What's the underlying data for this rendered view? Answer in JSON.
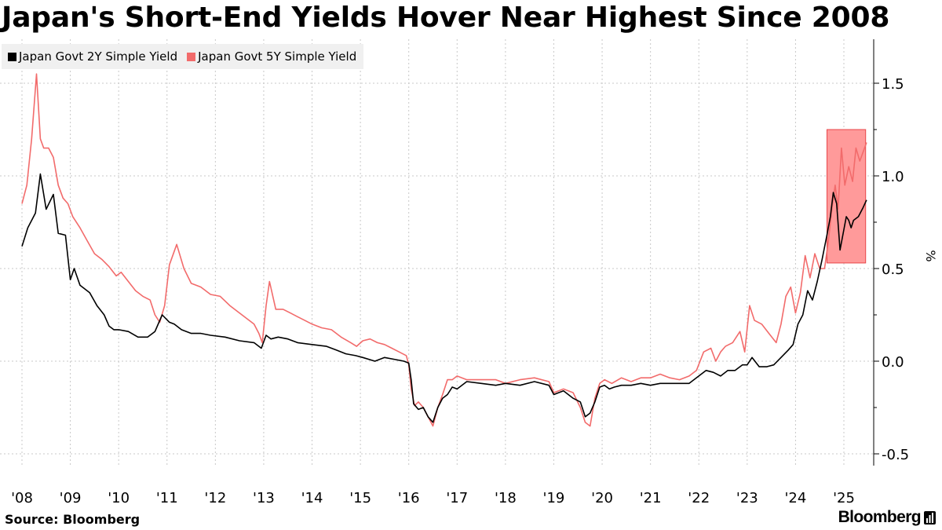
{
  "title": "Japan's Short-End Yields Hover Near Highest Since 2008",
  "source": "Source: Bloomberg",
  "brand": "Bloomberg",
  "colors": {
    "series2y": "#000000",
    "series5y": "#f26b6b",
    "highlight": "#ff9a9a",
    "highlight_border": "#e8464a",
    "grid": "#c8c8c8"
  },
  "chart_data": {
    "type": "line",
    "title": "Japan's Short-End Yields Hover Near Highest Since 2008",
    "xlabel": "",
    "ylabel": "%",
    "xlim": [
      2008.0,
      2025.6
    ],
    "ylim": [
      -0.57,
      1.73
    ],
    "yticks": [
      -0.5,
      0.0,
      0.5,
      1.0,
      1.5
    ],
    "ytick_labels": [
      "-0.5",
      "0.0",
      "0.5",
      "1.0",
      "1.5"
    ],
    "xticks": [
      2008,
      2009,
      2010,
      2011,
      2012,
      2013,
      2014,
      2015,
      2016,
      2017,
      2018,
      2019,
      2020,
      2021,
      2022,
      2023,
      2024,
      2025
    ],
    "xtick_labels": [
      "'08",
      "'09",
      "'10",
      "'11",
      "'12",
      "'13",
      "'14",
      "'15",
      "'16",
      "'17",
      "'18",
      "'19",
      "'20",
      "'21",
      "'22",
      "'23",
      "'24",
      "'25"
    ],
    "grid": true,
    "legend_position": "top-left",
    "highlight_region": {
      "x": [
        2024.65,
        2025.45
      ],
      "y": [
        0.53,
        1.25
      ]
    },
    "series": [
      {
        "name": "Japan Govt 2Y Simple Yield",
        "color": "#000000",
        "x": [
          2008.0,
          2008.12,
          2008.28,
          2008.38,
          2008.5,
          2008.65,
          2008.75,
          2008.9,
          2009.0,
          2009.08,
          2009.2,
          2009.4,
          2009.55,
          2009.7,
          2009.8,
          2009.9,
          2010.0,
          2010.2,
          2010.4,
          2010.6,
          2010.75,
          2010.9,
          2011.05,
          2011.15,
          2011.3,
          2011.5,
          2011.7,
          2011.9,
          2012.2,
          2012.5,
          2012.8,
          2012.95,
          2013.05,
          2013.15,
          2013.3,
          2013.5,
          2013.7,
          2014.0,
          2014.3,
          2014.5,
          2014.7,
          2014.9,
          2015.05,
          2015.3,
          2015.5,
          2015.7,
          2015.9,
          2016.0,
          2016.05,
          2016.1,
          2016.2,
          2016.3,
          2016.4,
          2016.5,
          2016.6,
          2016.7,
          2016.8,
          2016.9,
          2017.0,
          2017.2,
          2017.5,
          2017.8,
          2018.0,
          2018.3,
          2018.6,
          2018.9,
          2019.0,
          2019.2,
          2019.4,
          2019.55,
          2019.65,
          2019.75,
          2019.85,
          2019.95,
          2020.05,
          2020.15,
          2020.25,
          2020.4,
          2020.6,
          2020.8,
          2021.0,
          2021.2,
          2021.4,
          2021.6,
          2021.8,
          2022.0,
          2022.15,
          2022.3,
          2022.45,
          2022.6,
          2022.75,
          2022.9,
          2023.0,
          2023.1,
          2023.25,
          2023.4,
          2023.55,
          2023.7,
          2023.85,
          2023.95,
          2024.05,
          2024.15,
          2024.25,
          2024.35,
          2024.45,
          2024.55,
          2024.65,
          2024.72,
          2024.78,
          2024.85,
          2024.92,
          2025.0,
          2025.05,
          2025.1,
          2025.15,
          2025.2,
          2025.3,
          2025.4,
          2025.47
        ],
        "values": [
          0.62,
          0.72,
          0.8,
          1.01,
          0.82,
          0.9,
          0.69,
          0.68,
          0.44,
          0.5,
          0.41,
          0.37,
          0.3,
          0.25,
          0.19,
          0.17,
          0.17,
          0.16,
          0.13,
          0.13,
          0.16,
          0.25,
          0.21,
          0.2,
          0.17,
          0.15,
          0.15,
          0.14,
          0.13,
          0.11,
          0.1,
          0.07,
          0.14,
          0.12,
          0.13,
          0.12,
          0.1,
          0.09,
          0.08,
          0.06,
          0.04,
          0.03,
          0.02,
          0.0,
          0.02,
          0.01,
          0.0,
          -0.01,
          -0.1,
          -0.23,
          -0.26,
          -0.25,
          -0.3,
          -0.33,
          -0.25,
          -0.2,
          -0.18,
          -0.14,
          -0.15,
          -0.11,
          -0.12,
          -0.13,
          -0.12,
          -0.13,
          -0.11,
          -0.13,
          -0.18,
          -0.16,
          -0.2,
          -0.22,
          -0.3,
          -0.28,
          -0.22,
          -0.14,
          -0.13,
          -0.15,
          -0.14,
          -0.13,
          -0.13,
          -0.12,
          -0.13,
          -0.12,
          -0.12,
          -0.12,
          -0.12,
          -0.08,
          -0.05,
          -0.06,
          -0.08,
          -0.05,
          -0.05,
          -0.02,
          -0.02,
          0.02,
          -0.03,
          -0.03,
          -0.02,
          0.02,
          0.06,
          0.09,
          0.2,
          0.25,
          0.38,
          0.33,
          0.43,
          0.55,
          0.68,
          0.78,
          0.91,
          0.85,
          0.6,
          0.71,
          0.78,
          0.76,
          0.72,
          0.76,
          0.78,
          0.83,
          0.87
        ]
      },
      {
        "name": "Japan Govt 5Y Simple Yield",
        "color": "#f26b6b",
        "x": [
          2008.0,
          2008.1,
          2008.2,
          2008.3,
          2008.38,
          2008.45,
          2008.55,
          2008.65,
          2008.75,
          2008.85,
          2008.95,
          2009.05,
          2009.2,
          2009.35,
          2009.5,
          2009.65,
          2009.8,
          2009.95,
          2010.05,
          2010.2,
          2010.35,
          2010.5,
          2010.65,
          2010.75,
          2010.85,
          2010.95,
          2011.05,
          2011.2,
          2011.35,
          2011.5,
          2011.7,
          2011.9,
          2012.1,
          2012.3,
          2012.55,
          2012.8,
          2012.9,
          2012.97,
          2013.05,
          2013.12,
          2013.25,
          2013.4,
          2013.55,
          2013.7,
          2013.85,
          2014.0,
          2014.2,
          2014.4,
          2014.6,
          2014.8,
          2014.92,
          2015.05,
          2015.2,
          2015.35,
          2015.5,
          2015.65,
          2015.8,
          2015.95,
          2016.0,
          2016.05,
          2016.12,
          2016.2,
          2016.3,
          2016.4,
          2016.5,
          2016.6,
          2016.7,
          2016.8,
          2016.9,
          2017.0,
          2017.2,
          2017.5,
          2017.8,
          2018.0,
          2018.3,
          2018.6,
          2018.9,
          2019.0,
          2019.2,
          2019.4,
          2019.55,
          2019.65,
          2019.75,
          2019.85,
          2019.95,
          2020.05,
          2020.2,
          2020.4,
          2020.6,
          2020.8,
          2021.0,
          2021.2,
          2021.4,
          2021.6,
          2021.8,
          2021.95,
          2022.1,
          2022.25,
          2022.35,
          2022.45,
          2022.55,
          2022.7,
          2022.85,
          2022.95,
          2023.05,
          2023.15,
          2023.3,
          2023.45,
          2023.6,
          2023.7,
          2023.8,
          2023.9,
          2024.0,
          2024.1,
          2024.2,
          2024.3,
          2024.4,
          2024.5,
          2024.6,
          2024.68,
          2024.75,
          2024.82,
          2024.88,
          2024.95,
          2025.02,
          2025.1,
          2025.18,
          2025.25,
          2025.33,
          2025.4,
          2025.47
        ],
        "values": [
          0.85,
          0.95,
          1.2,
          1.55,
          1.2,
          1.15,
          1.15,
          1.1,
          0.95,
          0.88,
          0.85,
          0.78,
          0.72,
          0.65,
          0.58,
          0.55,
          0.51,
          0.46,
          0.48,
          0.43,
          0.38,
          0.35,
          0.33,
          0.25,
          0.21,
          0.3,
          0.52,
          0.63,
          0.5,
          0.42,
          0.4,
          0.36,
          0.35,
          0.3,
          0.25,
          0.2,
          0.15,
          0.1,
          0.3,
          0.43,
          0.28,
          0.28,
          0.26,
          0.24,
          0.22,
          0.2,
          0.18,
          0.17,
          0.13,
          0.1,
          0.08,
          0.11,
          0.12,
          0.1,
          0.09,
          0.07,
          0.05,
          0.03,
          -0.02,
          -0.15,
          -0.24,
          -0.22,
          -0.25,
          -0.3,
          -0.35,
          -0.25,
          -0.18,
          -0.1,
          -0.1,
          -0.08,
          -0.1,
          -0.1,
          -0.1,
          -0.12,
          -0.1,
          -0.09,
          -0.11,
          -0.17,
          -0.15,
          -0.17,
          -0.25,
          -0.33,
          -0.35,
          -0.2,
          -0.12,
          -0.1,
          -0.12,
          -0.09,
          -0.11,
          -0.09,
          -0.09,
          -0.07,
          -0.09,
          -0.1,
          -0.08,
          -0.05,
          0.05,
          0.07,
          0.0,
          0.05,
          0.08,
          0.1,
          0.16,
          0.05,
          0.3,
          0.22,
          0.2,
          0.15,
          0.1,
          0.2,
          0.35,
          0.4,
          0.26,
          0.37,
          0.57,
          0.45,
          0.58,
          0.5,
          0.5,
          0.65,
          0.82,
          0.95,
          0.82,
          1.15,
          0.95,
          1.05,
          0.97,
          1.15,
          1.08,
          1.13,
          1.18
        ]
      }
    ]
  }
}
